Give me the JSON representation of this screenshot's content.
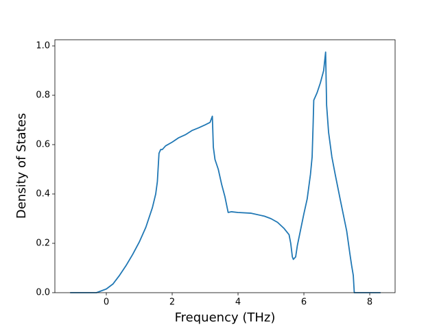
{
  "chart_data": {
    "type": "line",
    "x_label": "Frequency (THz)",
    "y_label": "Density of States",
    "color": "#1f77b4",
    "x": [
      -1.1,
      -0.3,
      0,
      0.2,
      0.4,
      0.6,
      0.8,
      1.0,
      1.2,
      1.4,
      1.5,
      1.55,
      1.6,
      1.65,
      1.7,
      1.8,
      2.0,
      2.2,
      2.4,
      2.6,
      2.8,
      3.0,
      3.15,
      3.22,
      3.25,
      3.3,
      3.4,
      3.5,
      3.6,
      3.7,
      3.8,
      4.0,
      4.4,
      4.8,
      5.0,
      5.2,
      5.4,
      5.55,
      5.6,
      5.65,
      5.68,
      5.75,
      5.8,
      6.0,
      6.1,
      6.2,
      6.25,
      6.28,
      6.3,
      6.4,
      6.5,
      6.6,
      6.66,
      6.69,
      6.75,
      6.85,
      6.95,
      7.1,
      7.3,
      7.4,
      7.45,
      7.5,
      7.53,
      8.33
    ],
    "values": [
      0,
      0,
      0.015,
      0.035,
      0.07,
      0.11,
      0.155,
      0.205,
      0.265,
      0.345,
      0.4,
      0.45,
      0.565,
      0.58,
      0.58,
      0.595,
      0.61,
      0.628,
      0.64,
      0.657,
      0.668,
      0.68,
      0.69,
      0.715,
      0.59,
      0.54,
      0.5,
      0.44,
      0.39,
      0.325,
      0.328,
      0.325,
      0.322,
      0.31,
      0.3,
      0.285,
      0.26,
      0.235,
      0.2,
      0.145,
      0.135,
      0.145,
      0.19,
      0.32,
      0.38,
      0.48,
      0.55,
      0.68,
      0.78,
      0.81,
      0.85,
      0.9,
      0.975,
      0.76,
      0.65,
      0.55,
      0.48,
      0.38,
      0.25,
      0.155,
      0.11,
      0.07,
      0,
      0
    ],
    "xlim": [
      -1.5625,
      8.77
    ],
    "ylim": [
      0,
      1.025
    ],
    "xticks": [
      0,
      2,
      4,
      6,
      8
    ],
    "yticks": [
      {
        "value": 0,
        "label": "0.0"
      },
      0.2,
      0.4,
      0.6,
      0.8,
      {
        "value": 1,
        "label": "1.0"
      }
    ]
  }
}
